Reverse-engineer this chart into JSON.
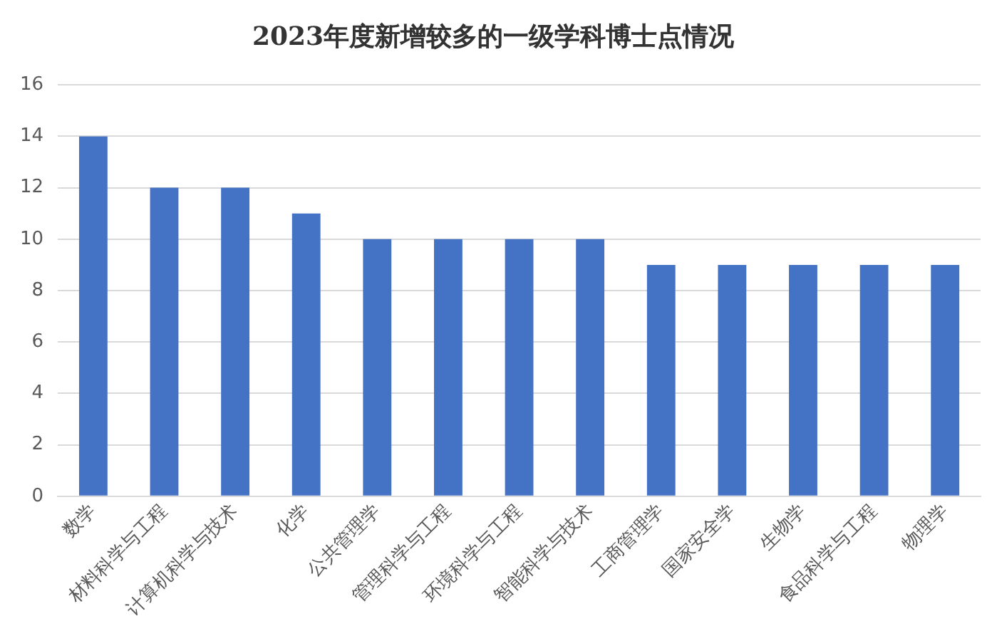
{
  "chart_data": {
    "type": "bar",
    "title": "2023年度新增较多的一级学科博士点情况",
    "categories": [
      "数学",
      "材料科学与工程",
      "计算机科学与技术",
      "化学",
      "公共管理学",
      "管理科学与工程",
      "环境科学与工程",
      "智能科学与技术",
      "工商管理学",
      "国家安全学",
      "生物学",
      "食品科学与工程",
      "物理学"
    ],
    "values": [
      14,
      12,
      12,
      11,
      10,
      10,
      10,
      10,
      9,
      9,
      9,
      9,
      9
    ],
    "color": "#4472c4",
    "ylim": [
      0,
      16
    ],
    "yticks": [
      0,
      2,
      4,
      6,
      8,
      10,
      12,
      14,
      16
    ],
    "grid": "y",
    "legend": false
  }
}
